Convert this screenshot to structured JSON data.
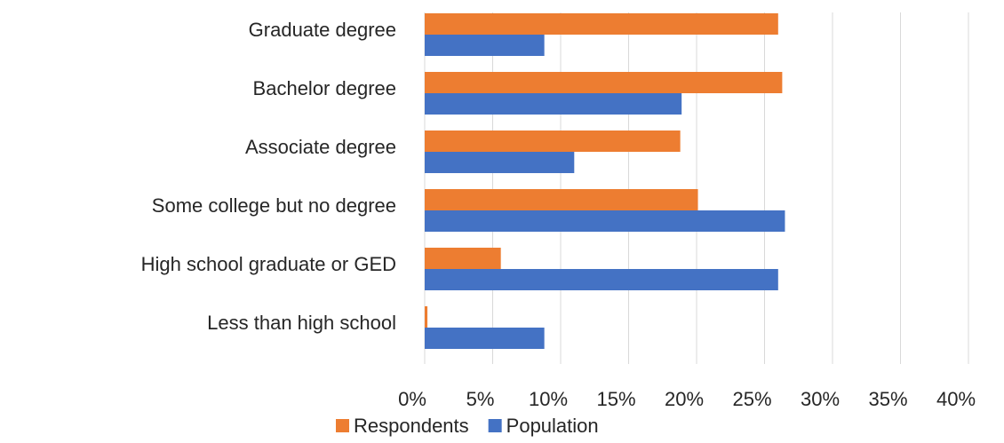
{
  "chart_data": {
    "type": "hbar",
    "categories": [
      "Graduate degree",
      "Bachelor degree",
      "Associate degree",
      "Some college but no degree",
      "High school graduate or GED",
      "Less than high school"
    ],
    "series": [
      {
        "name": "Respondents",
        "color": "#ed7d31",
        "values": [
          26.0,
          26.3,
          18.8,
          20.1,
          5.6,
          0.2
        ]
      },
      {
        "name": "Population",
        "color": "#4472c4",
        "values": [
          8.8,
          18.9,
          11.0,
          26.5,
          26.0,
          8.8
        ]
      }
    ],
    "xlim": [
      0,
      40
    ],
    "xticks": [
      {
        "value": 0,
        "label": "0%"
      },
      {
        "value": 5,
        "label": "5%"
      },
      {
        "value": 10,
        "label": "10%"
      },
      {
        "value": 15,
        "label": "15%"
      },
      {
        "value": 20,
        "label": "20%"
      },
      {
        "value": 25,
        "label": "25%"
      },
      {
        "value": 30,
        "label": "30%"
      },
      {
        "value": 35,
        "label": "35%"
      },
      {
        "value": 40,
        "label": "40%"
      }
    ],
    "grid": true,
    "legend": "bottom"
  }
}
